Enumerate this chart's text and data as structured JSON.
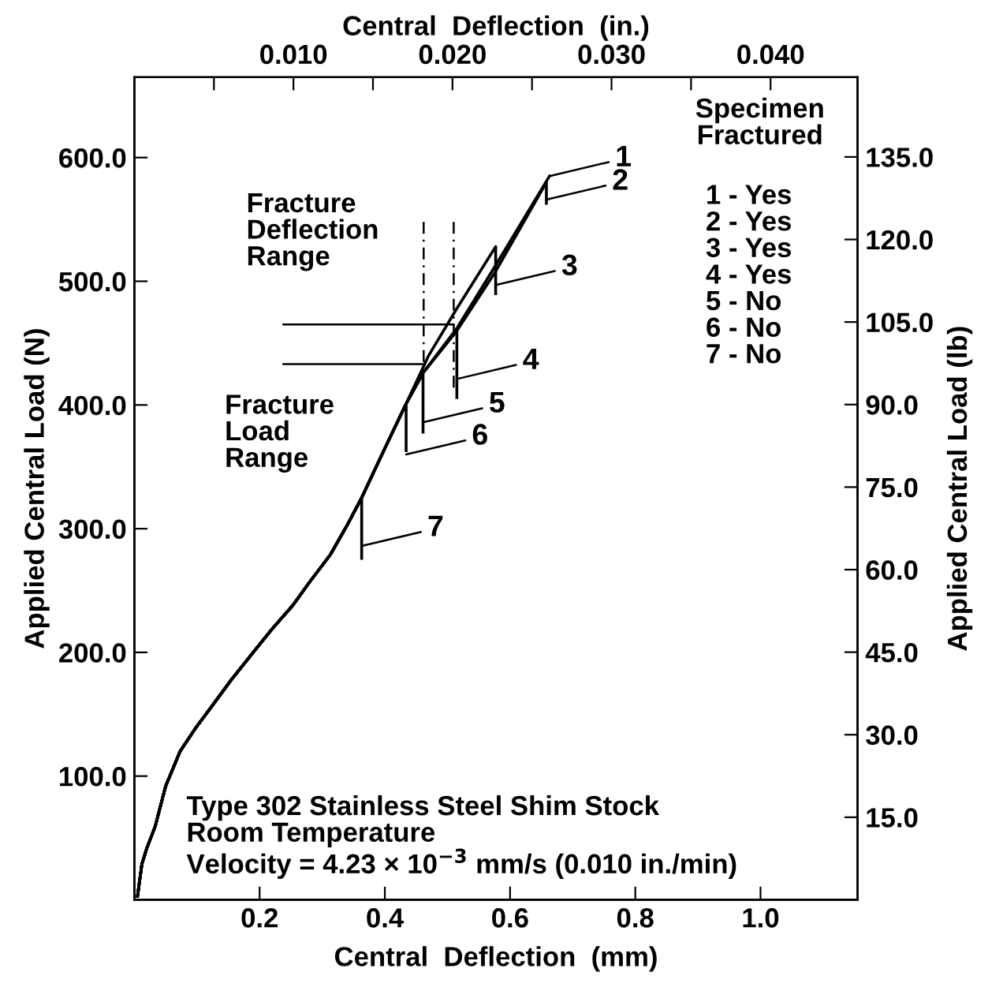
{
  "chart_data": {
    "type": "line",
    "xlabel": "Central  Deflection  (mm)",
    "ylabel": "Applied Central Load (N)",
    "y2label": "Applied Central Load (lb)",
    "x2label": "Central  Deflection  (in.)",
    "xlim": [
      0,
      1.155
    ],
    "ylim": [
      0,
      665
    ],
    "y2lim": [
      0,
      149.5
    ],
    "x2lim": [
      0,
      0.04547
    ],
    "xticks": [
      {
        "value": 0.2,
        "label": "0.2"
      },
      {
        "value": 0.4,
        "label": "0.4"
      },
      {
        "value": 0.6,
        "label": "0.6"
      },
      {
        "value": 0.8,
        "label": "0.8"
      },
      {
        "value": 1.0,
        "label": "1.0"
      }
    ],
    "yticks": [
      {
        "value": 100,
        "label": "100.0"
      },
      {
        "value": 200,
        "label": "200.0"
      },
      {
        "value": 300,
        "label": "300.0"
      },
      {
        "value": 400,
        "label": "400.0"
      },
      {
        "value": 500,
        "label": "500.0"
      },
      {
        "value": 600,
        "label": "600.0"
      }
    ],
    "y2ticks": [
      {
        "value": 15,
        "label": "15.0"
      },
      {
        "value": 30,
        "label": "30.0"
      },
      {
        "value": 45,
        "label": "45.0"
      },
      {
        "value": 60,
        "label": "60.0"
      },
      {
        "value": 75,
        "label": "75.0"
      },
      {
        "value": 90,
        "label": "90.0"
      },
      {
        "value": 105,
        "label": "105.0"
      },
      {
        "value": 120,
        "label": "120.0"
      },
      {
        "value": 135,
        "label": "135.0"
      }
    ],
    "x2ticks": [
      {
        "value": 0.005,
        "label": null
      },
      {
        "value": 0.01,
        "label": "0.010"
      },
      {
        "value": 0.015,
        "label": null
      },
      {
        "value": 0.02,
        "label": "0.020"
      },
      {
        "value": 0.025,
        "label": null
      },
      {
        "value": 0.03,
        "label": "0.030"
      },
      {
        "value": 0.035,
        "label": null
      },
      {
        "value": 0.04,
        "label": "0.040"
      }
    ],
    "grid": false,
    "legend": false,
    "marker": "none",
    "series": [
      {
        "color": "#000000",
        "x": [
          0.005,
          0.012,
          0.02,
          0.033,
          0.05,
          0.073,
          0.098,
          0.123,
          0.155,
          0.193,
          0.22,
          0.253,
          0.28,
          0.313,
          0.34,
          0.363,
          0.4,
          0.434,
          0.461,
          0.515,
          0.577,
          0.663
        ],
        "values": [
          3,
          29,
          42,
          59,
          92,
          120,
          139,
          156,
          178,
          202,
          219,
          238,
          257,
          279,
          303,
          325,
          365,
          401,
          426,
          462,
          513,
          585
        ]
      },
      {
        "color": "#000000",
        "x": [
          0.005,
          0.012,
          0.02,
          0.033,
          0.05,
          0.073,
          0.098,
          0.123,
          0.155,
          0.193,
          0.22,
          0.253,
          0.28,
          0.313,
          0.34,
          0.363,
          0.4,
          0.434,
          0.461,
          0.515,
          0.577,
          0.658,
          0.658
        ],
        "values": [
          3,
          29,
          42,
          59,
          92,
          120,
          139,
          156,
          178,
          202,
          219,
          238,
          257,
          279,
          303,
          325,
          365,
          401,
          426,
          460,
          508,
          580,
          563
        ]
      },
      {
        "color": "#000000",
        "x": [
          0.005,
          0.012,
          0.02,
          0.033,
          0.05,
          0.073,
          0.098,
          0.123,
          0.155,
          0.193,
          0.22,
          0.253,
          0.28,
          0.313,
          0.34,
          0.363,
          0.4,
          0.434,
          0.47,
          0.515,
          0.577,
          0.577
        ],
        "values": [
          3,
          29,
          42,
          59,
          92,
          120,
          139,
          156,
          178,
          202,
          219,
          238,
          257,
          279,
          303,
          325,
          365,
          401,
          440,
          478,
          528,
          490
        ]
      },
      {
        "color": "#000000",
        "x": [
          0.005,
          0.012,
          0.02,
          0.033,
          0.05,
          0.073,
          0.098,
          0.123,
          0.155,
          0.193,
          0.22,
          0.253,
          0.28,
          0.313,
          0.34,
          0.363,
          0.4,
          0.434,
          0.461,
          0.515,
          0.515
        ],
        "values": [
          3,
          29,
          42,
          59,
          92,
          120,
          139,
          156,
          178,
          202,
          219,
          238,
          257,
          279,
          303,
          325,
          365,
          401,
          426,
          460,
          406
        ]
      },
      {
        "color": "#000000",
        "x": [
          0.005,
          0.012,
          0.02,
          0.033,
          0.05,
          0.073,
          0.098,
          0.123,
          0.155,
          0.193,
          0.22,
          0.253,
          0.28,
          0.313,
          0.34,
          0.363,
          0.4,
          0.434,
          0.461,
          0.461
        ],
        "values": [
          3,
          29,
          42,
          59,
          92,
          120,
          139,
          156,
          178,
          202,
          219,
          238,
          257,
          279,
          303,
          325,
          365,
          401,
          426,
          378
        ]
      },
      {
        "color": "#000000",
        "x": [
          0.005,
          0.012,
          0.02,
          0.033,
          0.05,
          0.073,
          0.098,
          0.123,
          0.155,
          0.193,
          0.22,
          0.253,
          0.28,
          0.313,
          0.34,
          0.363,
          0.4,
          0.434,
          0.434
        ],
        "values": [
          3,
          29,
          42,
          59,
          92,
          120,
          139,
          156,
          178,
          202,
          219,
          238,
          257,
          279,
          303,
          325,
          365,
          401,
          363
        ]
      },
      {
        "color": "#000000",
        "x": [
          0.005,
          0.012,
          0.02,
          0.033,
          0.05,
          0.073,
          0.098,
          0.123,
          0.155,
          0.193,
          0.22,
          0.253,
          0.28,
          0.313,
          0.34,
          0.363,
          0.363
        ],
        "values": [
          3,
          29,
          42,
          59,
          92,
          120,
          139,
          156,
          178,
          202,
          219,
          238,
          257,
          279,
          303,
          325,
          276
        ]
      },
      {
        "color": "#000000",
        "line_style": "dashed",
        "x": [
          0.462,
          0.462
        ],
        "values": [
          548,
          432
        ]
      },
      {
        "color": "#000000",
        "line_style": "dashed",
        "x": [
          0.51,
          0.51
        ],
        "values": [
          548,
          411
        ]
      },
      {
        "color": "#000000",
        "line_style": "solid",
        "x": [
          0.238,
          0.51
        ],
        "values": [
          465,
          465
        ]
      },
      {
        "color": "#000000",
        "line_style": "solid",
        "x": [
          0.238,
          0.462
        ],
        "values": [
          433,
          433
        ]
      }
    ],
    "annotations": [
      "Specimen\nFractured",
      "1 - Yes\n2 - Yes\n3 - Yes\n4 - Yes\n5 - No\n6 - No\n7 - No",
      "Fracture\nDeflection\nRange",
      "Fracture\nLoad\nRange",
      "Type 302 Stainless Steel Shim Stock\nRoom Temperature\nVelocity = 4.23 × 10$^{−3}$ mm/s (0.010 in./min)",
      {
        "text": "1",
        "x": 0.663,
        "y": 585
      },
      {
        "text": "2",
        "x": 0.658,
        "y": 566
      },
      {
        "text": "3",
        "x": 0.577,
        "y": 497
      },
      {
        "text": "4",
        "x": 0.515,
        "y": 421
      },
      {
        "text": "5",
        "x": 0.461,
        "y": 386
      },
      {
        "text": "6",
        "x": 0.434,
        "y": 360
      },
      {
        "text": "7",
        "x": 0.363,
        "y": 286
      }
    ]
  }
}
